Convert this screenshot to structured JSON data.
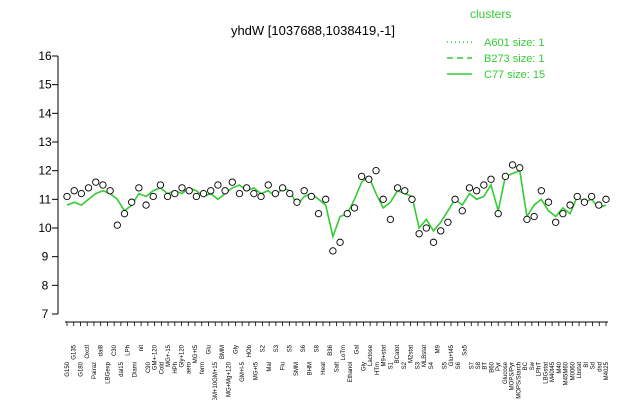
{
  "chart_data": {
    "type": "line",
    "title": "yhdW [1037688,1038419,-1]",
    "xlabel": "",
    "ylabel": "",
    "ylim": [
      7,
      16
    ],
    "yticks": [
      7,
      8,
      9,
      10,
      11,
      12,
      13,
      14,
      15,
      16
    ],
    "legend": {
      "title": "clusters",
      "placement": "top-right",
      "entries": [
        {
          "label": "A601 size: 1",
          "style": "dotted"
        },
        {
          "label": "B273 size: 1",
          "style": "dashed"
        },
        {
          "label": "C77 size: 15",
          "style": "solid"
        }
      ]
    },
    "colors": {
      "line": "#33cc33",
      "legend": "#33cc33",
      "points": "#000000"
    },
    "xticks_row1": [
      "G150",
      "G180",
      "Pairaz",
      "LBGexp",
      "dal15",
      "Diami",
      "C90",
      "Cold",
      "HPh",
      "aero",
      "ferm",
      "GM+10GM+15",
      "MG+Mg+120",
      "GM+l-5",
      "MG+t5",
      "Mal",
      "Flu",
      "SMM",
      "BHM",
      "Heat",
      "Salt",
      "Ethanol",
      "Gly",
      "HTm",
      "S1",
      "S2",
      "S3",
      "S4",
      "S5",
      "S6",
      "S7",
      "S8",
      "BT",
      "B60",
      "Pyr",
      "Glucose",
      "MOPS/Pyr",
      "MOPS/Starch",
      "BC",
      "Sw",
      "LPhT",
      "LBGstat",
      "M40t45",
      "M40",
      "M45M60",
      "M0060",
      "Lbstat",
      "BI",
      "Sd",
      "dsd",
      "M4025"
    ],
    "xticks_row2": [
      "G135",
      "Oxctl",
      "dal8",
      "C30",
      "LPh",
      "nit",
      "GM+-120",
      "MG+-15",
      "Gly+120",
      "MG+t5",
      "Glu",
      "BMM",
      "Gly",
      "HOb",
      "S2",
      "S3",
      "S5",
      "S6",
      "S8",
      "B36",
      "LoTm",
      "Gal",
      "Lactose",
      "M9+stat",
      "BCatot",
      "M2stat",
      "MLBstat",
      "M9",
      "Glu+t45",
      "Sa5"
    ],
    "series": [
      {
        "style": "solid",
        "values": [
          10.8,
          10.9,
          10.8,
          11.0,
          11.2,
          11.3,
          11.2,
          11.0,
          10.6,
          10.8,
          11.2,
          11.1,
          11.3,
          11.4,
          11.2,
          11.3,
          11.2,
          11.4,
          11.3,
          11.1,
          11.2,
          11.0,
          11.2,
          11.4,
          11.5,
          11.3,
          11.4,
          11.2,
          11.3,
          11.1,
          11.4,
          11.3,
          10.8,
          11.1,
          11.2,
          11.0,
          10.8,
          9.7,
          10.4,
          10.5,
          11.0,
          11.6,
          11.8,
          11.2,
          10.7,
          10.9,
          11.3,
          11.2,
          11.1,
          10.0,
          10.3,
          9.9,
          10.2,
          10.6,
          11.0,
          10.8,
          11.2,
          11.0,
          11.1,
          11.5,
          10.6,
          11.8,
          11.9,
          12.0,
          10.4,
          10.8,
          11.0,
          10.6,
          10.4,
          10.7,
          10.5,
          11.1,
          10.9,
          11.0,
          10.7,
          10.8
        ]
      }
    ],
    "points": {
      "x_index": [
        0,
        1,
        2,
        3,
        4,
        5,
        6,
        7,
        8,
        9,
        10,
        11,
        12,
        13,
        14,
        15,
        16,
        17,
        18,
        19,
        20,
        21,
        22,
        23,
        24,
        25,
        26,
        27,
        28,
        29,
        30,
        31,
        32,
        33,
        34,
        35,
        36,
        37,
        38,
        39,
        40,
        41,
        42,
        43,
        44,
        45,
        46,
        47,
        48,
        49,
        50,
        51,
        52,
        53,
        54,
        55,
        56,
        57,
        58,
        59,
        60,
        61,
        62,
        63,
        64,
        65,
        66,
        67,
        68,
        69,
        70,
        71,
        72,
        73,
        74,
        75
      ],
      "values": [
        11.1,
        11.3,
        11.2,
        11.4,
        11.6,
        11.5,
        11.3,
        10.1,
        10.5,
        10.9,
        11.4,
        10.8,
        11.1,
        11.5,
        11.1,
        11.2,
        11.4,
        11.3,
        11.1,
        11.2,
        11.3,
        11.5,
        11.3,
        11.6,
        11.2,
        11.4,
        11.2,
        11.1,
        11.5,
        11.2,
        11.4,
        11.2,
        10.9,
        11.3,
        11.1,
        10.5,
        11.0,
        9.2,
        9.5,
        10.5,
        10.7,
        11.8,
        11.7,
        12.0,
        11.0,
        10.3,
        11.4,
        11.3,
        11.0,
        9.8,
        10.0,
        9.5,
        9.9,
        10.2,
        11.0,
        10.6,
        11.4,
        11.3,
        11.5,
        11.7,
        10.5,
        11.8,
        12.2,
        12.1,
        10.3,
        10.4,
        11.3,
        10.9,
        10.2,
        10.5,
        10.8,
        11.1,
        10.9,
        11.1,
        10.8,
        11.0
      ]
    }
  }
}
